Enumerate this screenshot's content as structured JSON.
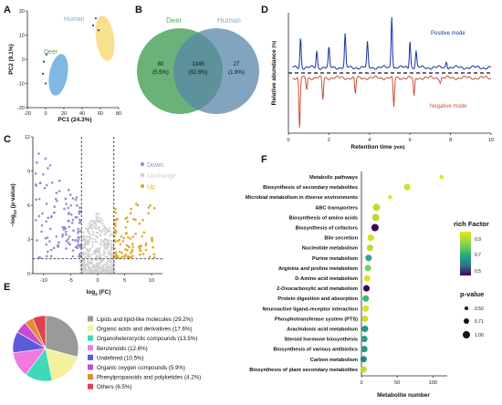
{
  "figure": {
    "panels": [
      "A",
      "B",
      "C",
      "D",
      "E",
      "F"
    ]
  },
  "chart_data": [
    {
      "panel": "A",
      "type": "scatter",
      "xlabel": "PC1 (24.3%)",
      "ylabel": "PC2 (9.1%)",
      "xlim": [
        -20,
        80
      ],
      "ylim": [
        -20,
        20
      ],
      "xticks": [
        "-20",
        "0",
        "20",
        "40",
        "60",
        "80"
      ],
      "yticks": [
        "-20",
        "-10",
        "0",
        "10",
        "20"
      ],
      "series": [
        {
          "name": "Deer",
          "color": "#4a90d9",
          "points": [
            [
              -2,
              -1
            ],
            [
              1,
              2
            ],
            [
              -3,
              -6
            ],
            [
              0,
              -10
            ]
          ]
        },
        {
          "name": "Human",
          "color": "#f2c744",
          "points": [
            [
              52,
              14
            ],
            [
              55,
              17
            ],
            [
              58,
              12
            ]
          ]
        }
      ]
    },
    {
      "panel": "B",
      "type": "venn",
      "sets": [
        "Deer",
        "Human"
      ],
      "colors": {
        "Deer": "#5aaa6a",
        "Human": "#5a86a8"
      },
      "regions": [
        {
          "count": "80",
          "pct": "(5.5%)"
        },
        {
          "count": "1345",
          "pct": "(92.6%)"
        },
        {
          "count": "27",
          "pct": "(1.9%)"
        }
      ]
    },
    {
      "panel": "C",
      "type": "scatter",
      "xlabel": "log",
      "xlabel_sub": "2",
      "xlabel_tail": " (FC)",
      "ylabel": "−log",
      "ylabel_sub": "10",
      "ylabel_tail": " (p-value)",
      "xlim": [
        -12,
        12
      ],
      "ylim": [
        0,
        12
      ],
      "xticks": [
        -10,
        -5,
        0,
        5,
        10
      ],
      "yticks": [
        0,
        3,
        6,
        9,
        12
      ],
      "thresholds": {
        "x": [
          -3,
          3
        ],
        "y": 1.3
      },
      "legend": [
        {
          "label": "Down",
          "color": "#9a8ad8"
        },
        {
          "label": "Unchange",
          "color": "#d0d0d0"
        },
        {
          "label": "Up",
          "color": "#e0a82e"
        }
      ]
    },
    {
      "panel": "D",
      "type": "line",
      "xlabel": "Retention time",
      "xlabel_unit": "(min)",
      "ylabel": "Relative abundance",
      "ylabel_unit": "(%)",
      "xlim": [
        0,
        10
      ],
      "xticks": [
        0,
        2,
        4,
        6,
        8,
        10
      ],
      "series": [
        {
          "name": "Positive mode",
          "color": "#1a2fa8",
          "peaks": [
            [
              0.6,
              55
            ],
            [
              1.4,
              30
            ],
            [
              2.0,
              35
            ],
            [
              2.8,
              60
            ],
            [
              3.9,
              45
            ],
            [
              5.1,
              95
            ],
            [
              6.0,
              50
            ],
            [
              6.3,
              30
            ],
            [
              7.8,
              12
            ]
          ]
        },
        {
          "name": "Negative mode",
          "color": "#c8503c",
          "peaks": [
            [
              0.55,
              95
            ],
            [
              0.9,
              20
            ],
            [
              1.7,
              40
            ],
            [
              3.3,
              30
            ],
            [
              5.2,
              55
            ],
            [
              6.2,
              35
            ],
            [
              7.5,
              8
            ]
          ]
        }
      ]
    },
    {
      "panel": "E",
      "type": "pie",
      "slices": [
        {
          "label": "Lipids and lipid-like molecules (29.2%)",
          "value": 29.2,
          "color": "#9a9a9a"
        },
        {
          "label": "Organic acids and derivatives (17.6%)",
          "value": 17.6,
          "color": "#f3f1a0"
        },
        {
          "label": "Organoheterocyclic compounds (13.5%)",
          "value": 13.5,
          "color": "#3fd8b8"
        },
        {
          "label": "Benzenoids (12.6%)",
          "value": 12.6,
          "color": "#f07ae0"
        },
        {
          "label": "Undefined (10.5%)",
          "value": 10.5,
          "color": "#5b5bd8"
        },
        {
          "label": "Organic oxygen compounds (5.9%)",
          "value": 5.9,
          "color": "#c94ad0"
        },
        {
          "label": "Phenylpropanoids and polyketides (4.2%)",
          "value": 4.2,
          "color": "#e08a3a"
        },
        {
          "label": "Others (6.5%)",
          "value": 6.5,
          "color": "#e0424a"
        }
      ]
    },
    {
      "panel": "F",
      "type": "scatter",
      "xlabel": "Metabolite number",
      "xlim": [
        0,
        120
      ],
      "xticks": [
        0,
        50,
        100
      ],
      "categories": [
        "Metabolic pathways",
        "Biosynthesis of secondary metabolites",
        "Microbial metabolism in diverse environments",
        "ABC transporters",
        "Biosynthesis of amino acids",
        "Biosynthesis of cofactors",
        "Bile secretion",
        "Nucleotide metabolism",
        "Purine metabolism",
        "Arginine and proline metabolism",
        "D-Amino acid metabolism",
        "2-Oxocarboxylic acid metabolism",
        "Protein digestion and absorption",
        "Neuroactive ligand-receptor interaction",
        "Phosphotransferase system (PTS)",
        "Arachidonic acid metabolism",
        "Steroid hormone biosynthesis",
        "Biosynthesis of various antibiotics",
        "Carbon metabolism",
        "Biosynthesis of plant secondary metabolites"
      ],
      "points": [
        {
          "x": 112,
          "rf": 0.97,
          "p": 0.5
        },
        {
          "x": 64,
          "rf": 0.95,
          "p": 0.8
        },
        {
          "x": 40,
          "rf": 0.96,
          "p": 0.5
        },
        {
          "x": 21,
          "rf": 0.93,
          "p": 0.9
        },
        {
          "x": 20,
          "rf": 0.92,
          "p": 0.9
        },
        {
          "x": 19,
          "rf": 0.5,
          "p": 0.9
        },
        {
          "x": 13,
          "rf": 0.95,
          "p": 0.8
        },
        {
          "x": 12,
          "rf": 0.92,
          "p": 0.8
        },
        {
          "x": 10,
          "rf": 0.75,
          "p": 0.8
        },
        {
          "x": 9,
          "rf": 0.85,
          "p": 0.8
        },
        {
          "x": 8,
          "rf": 0.96,
          "p": 0.8
        },
        {
          "x": 7,
          "rf": 0.5,
          "p": 0.8
        },
        {
          "x": 6,
          "rf": 0.78,
          "p": 0.8
        },
        {
          "x": 6,
          "rf": 0.96,
          "p": 0.8
        },
        {
          "x": 5,
          "rf": 0.94,
          "p": 0.8
        },
        {
          "x": 5,
          "rf": 0.7,
          "p": 0.8
        },
        {
          "x": 4,
          "rf": 0.72,
          "p": 0.8
        },
        {
          "x": 4,
          "rf": 0.7,
          "p": 0.8
        },
        {
          "x": 3,
          "rf": 0.66,
          "p": 0.8
        },
        {
          "x": 3,
          "rf": 0.93,
          "p": 0.8
        }
      ],
      "colorbar": {
        "title": "rich Factor",
        "ticks": [
          "0.9",
          "0.7",
          "0.5"
        ]
      },
      "sizelegend": {
        "title": "p-value",
        "ticks": [
          "0.50",
          "0.71",
          "1.00"
        ]
      }
    }
  ]
}
